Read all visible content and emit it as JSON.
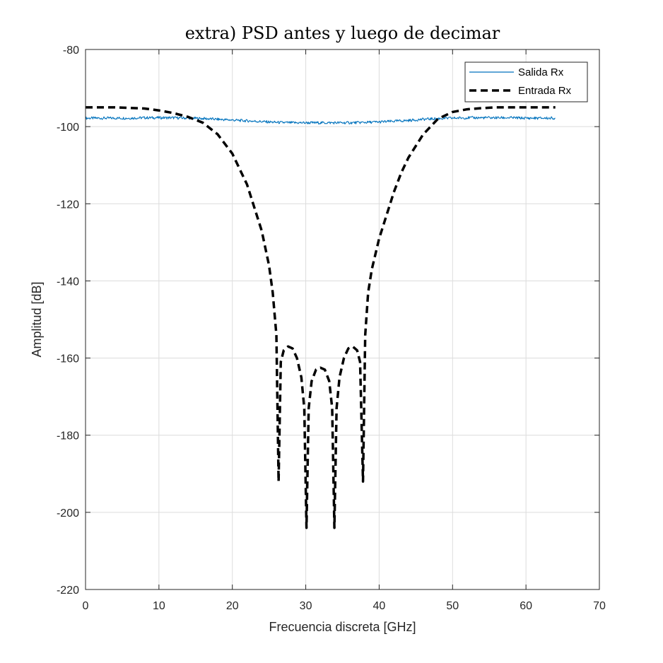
{
  "chart_data": {
    "type": "line",
    "title": "extra) PSD antes y luego de decimar",
    "xlabel": "Frecuencia discreta [GHz]",
    "ylabel": "Amplitud [dB]",
    "xlim": [
      0,
      70
    ],
    "ylim": [
      -220,
      -80
    ],
    "xticks": [
      0,
      10,
      20,
      30,
      40,
      50,
      60,
      70
    ],
    "yticks": [
      -220,
      -200,
      -180,
      -160,
      -140,
      -120,
      -100,
      -80
    ],
    "grid": true,
    "legend_position": "top-right",
    "series": [
      {
        "name": "Salida Rx",
        "color": "#0072BD",
        "style": "solid",
        "x": [
          0,
          2,
          4,
          6,
          8,
          10,
          12,
          14,
          16,
          18,
          20,
          22,
          24,
          26,
          28,
          30,
          32,
          34,
          36,
          38,
          40,
          42,
          44,
          46,
          48,
          50,
          52,
          54,
          56,
          58,
          60,
          62,
          64
        ],
        "y": [
          -97.8,
          -97.8,
          -97.8,
          -97.8,
          -97.7,
          -97.7,
          -97.7,
          -97.8,
          -97.9,
          -98.1,
          -98.3,
          -98.5,
          -98.7,
          -98.9,
          -99.0,
          -99.0,
          -99.0,
          -99.0,
          -99.0,
          -98.9,
          -98.8,
          -98.6,
          -98.4,
          -98.1,
          -97.9,
          -97.8,
          -97.7,
          -97.7,
          -97.7,
          -97.7,
          -97.8,
          -97.8,
          -97.8
        ]
      },
      {
        "name": "Entrada Rx",
        "color": "#000000",
        "style": "dashed",
        "x": [
          0,
          4,
          8,
          10,
          12,
          14,
          16,
          18,
          20,
          21,
          22,
          23,
          24,
          25,
          25.5,
          26,
          26.3,
          26.6,
          27,
          27.6,
          28.2,
          28.8,
          29.4,
          29.8,
          30.1,
          30.4,
          30.8,
          31.4,
          32,
          32.6,
          33.2,
          33.6,
          33.9,
          34.2,
          34.6,
          35.2,
          35.8,
          36.4,
          37,
          37.4,
          37.8,
          38.1,
          38.5,
          39,
          40,
          41,
          42,
          43,
          44,
          46,
          48,
          50,
          52,
          54,
          56,
          58,
          60,
          62,
          64
        ],
        "y": [
          -95,
          -95,
          -95.3,
          -95.8,
          -96.5,
          -97.5,
          -99,
          -102,
          -107,
          -111,
          -115,
          -121,
          -127,
          -136,
          -143,
          -154,
          -192,
          -161,
          -158,
          -157,
          -157.5,
          -160,
          -165,
          -173,
          -204,
          -173,
          -166,
          -163,
          -162.5,
          -163,
          -166,
          -173,
          -204,
          -173,
          -165,
          -160,
          -157.5,
          -157,
          -158,
          -161,
          -192,
          -154,
          -143,
          -137,
          -129,
          -123,
          -117,
          -112,
          -108,
          -102,
          -98,
          -96.2,
          -95.5,
          -95.2,
          -95,
          -95,
          -95,
          -95,
          -95
        ]
      }
    ]
  }
}
